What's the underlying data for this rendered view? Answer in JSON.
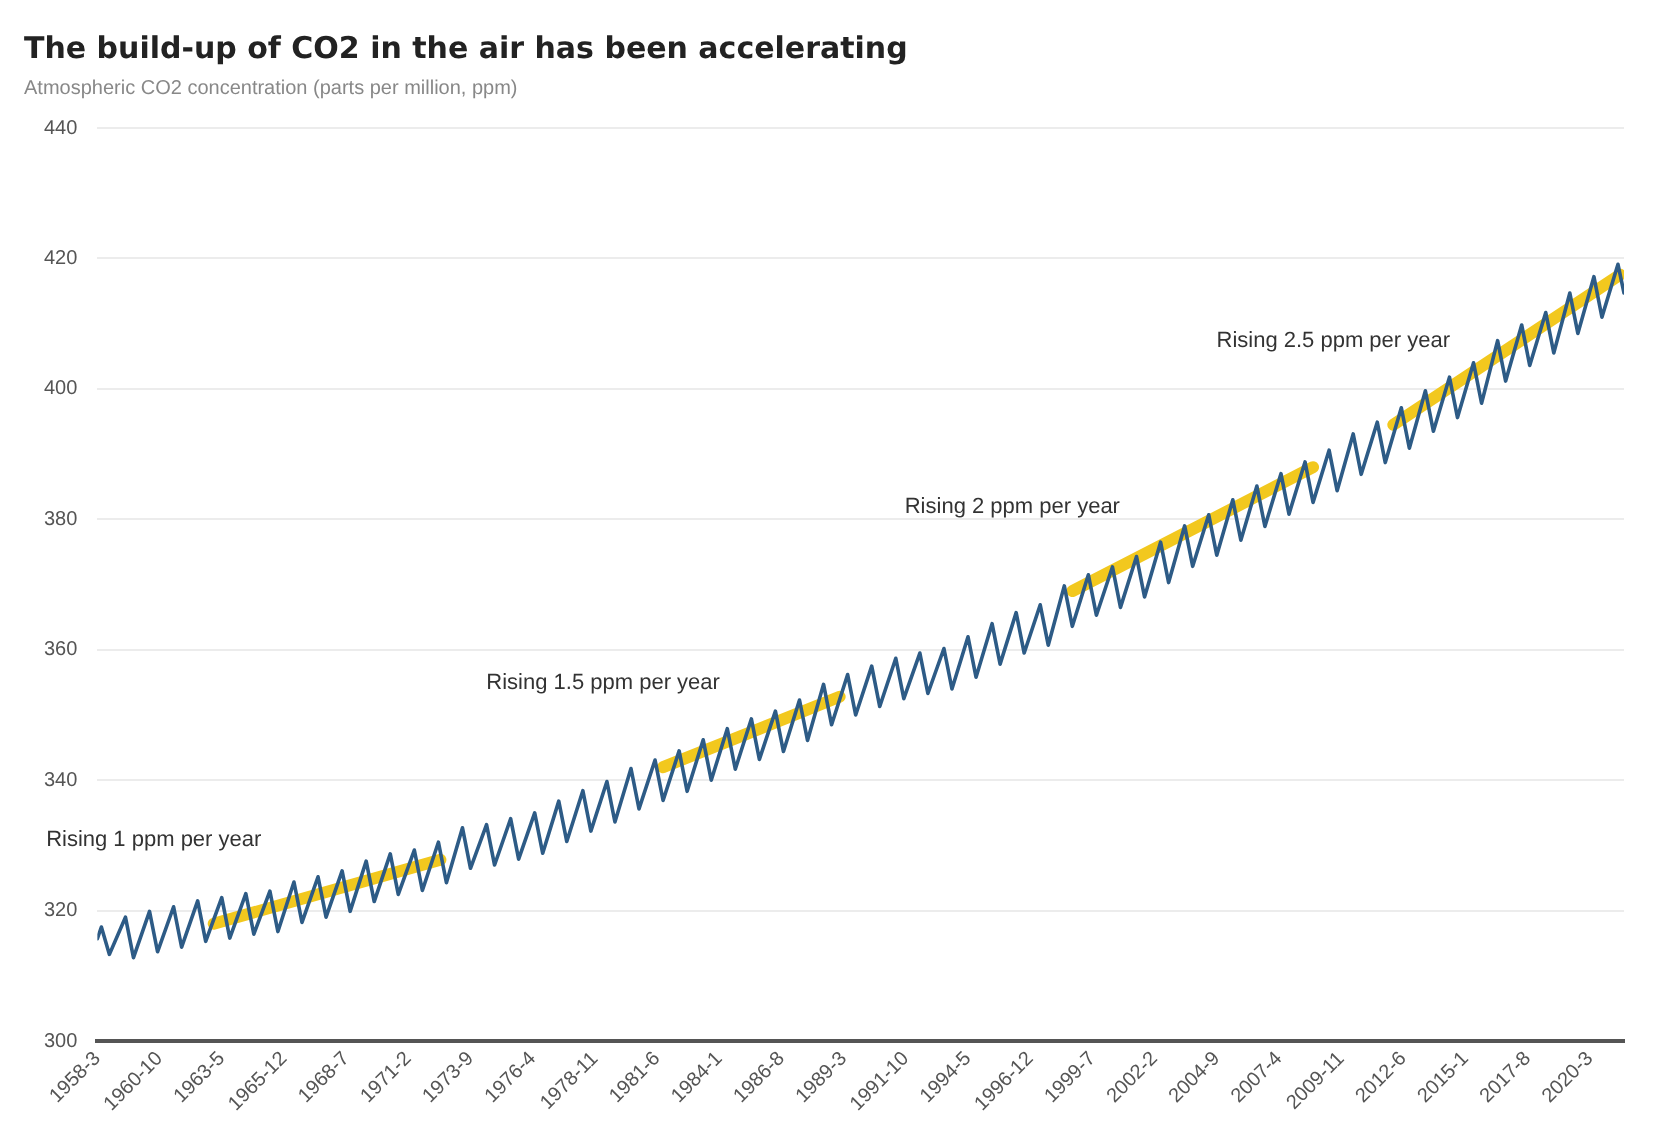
{
  "chart_data": {
    "type": "line",
    "title": "The build-up of CO2 in the air has been accelerating",
    "subtitle": "Atmospheric CO2 concentration (parts per million, ppm)",
    "series": [
      {
        "color": "#2d5b86",
        "x": [
          "1958-03",
          "1958-05",
          "1958-09",
          "1959-05",
          "1959-09",
          "1960-05",
          "1960-09",
          "1961-05",
          "1961-09",
          "1962-05",
          "1962-09",
          "1963-05",
          "1963-09",
          "1964-05",
          "1964-09",
          "1965-05",
          "1965-09",
          "1966-05",
          "1966-09",
          "1967-05",
          "1967-09",
          "1968-05",
          "1968-09",
          "1969-05",
          "1969-09",
          "1970-05",
          "1970-09",
          "1971-05",
          "1971-09",
          "1972-05",
          "1972-09",
          "1973-05",
          "1973-09",
          "1974-05",
          "1974-09",
          "1975-05",
          "1975-09",
          "1976-05",
          "1976-09",
          "1977-05",
          "1977-09",
          "1978-05",
          "1978-09",
          "1979-05",
          "1979-09",
          "1980-05",
          "1980-09",
          "1981-05",
          "1981-09",
          "1982-05",
          "1982-09",
          "1983-05",
          "1983-09",
          "1984-05",
          "1984-09",
          "1985-05",
          "1985-09",
          "1986-05",
          "1986-09",
          "1987-05",
          "1987-09",
          "1988-05",
          "1988-09",
          "1989-05",
          "1989-09",
          "1990-05",
          "1990-09",
          "1991-05",
          "1991-09",
          "1992-05",
          "1992-09",
          "1993-05",
          "1993-09",
          "1994-05",
          "1994-09",
          "1995-05",
          "1995-09",
          "1996-05",
          "1996-09",
          "1997-05",
          "1997-09",
          "1998-05",
          "1998-09",
          "1999-05",
          "1999-09",
          "2000-05",
          "2000-09",
          "2001-05",
          "2001-09",
          "2002-05",
          "2002-09",
          "2003-05",
          "2003-09",
          "2004-05",
          "2004-09",
          "2005-05",
          "2005-09",
          "2006-05",
          "2006-09",
          "2007-05",
          "2007-09",
          "2008-05",
          "2008-09",
          "2009-05",
          "2009-09",
          "2010-05",
          "2010-09",
          "2011-05",
          "2011-09",
          "2012-05",
          "2012-09",
          "2013-05",
          "2013-09",
          "2014-05",
          "2014-09",
          "2015-05",
          "2015-09",
          "2016-05",
          "2016-09",
          "2017-05",
          "2017-09",
          "2018-05",
          "2018-09",
          "2019-05",
          "2019-09",
          "2020-05",
          "2020-09",
          "2021-05",
          "2021-08"
        ],
        "values": [
          315.7,
          317.5,
          313.3,
          319.0,
          312.8,
          319.9,
          313.7,
          320.6,
          314.4,
          321.5,
          315.3,
          322.0,
          315.8,
          322.6,
          316.4,
          323.0,
          316.8,
          324.4,
          318.2,
          325.2,
          319.0,
          326.1,
          319.9,
          327.6,
          321.4,
          328.7,
          322.5,
          329.3,
          323.1,
          330.5,
          324.3,
          332.7,
          326.5,
          333.2,
          327.0,
          334.1,
          327.9,
          335.0,
          328.8,
          336.8,
          330.6,
          338.4,
          332.2,
          339.8,
          333.6,
          341.8,
          335.6,
          343.1,
          336.9,
          344.5,
          338.3,
          346.2,
          340.0,
          347.9,
          341.7,
          349.4,
          343.2,
          350.6,
          344.4,
          352.3,
          346.1,
          354.7,
          348.5,
          356.2,
          350.0,
          357.5,
          351.3,
          358.7,
          352.5,
          359.5,
          353.3,
          360.2,
          354.0,
          362.0,
          355.8,
          364.0,
          357.8,
          365.7,
          359.5,
          366.9,
          360.7,
          369.8,
          363.6,
          371.5,
          365.3,
          372.7,
          366.5,
          374.3,
          368.1,
          376.5,
          370.3,
          379.0,
          372.8,
          380.7,
          374.5,
          383.0,
          376.8,
          385.1,
          378.9,
          387.0,
          380.8,
          388.8,
          382.6,
          390.6,
          384.4,
          393.1,
          386.9,
          394.9,
          388.7,
          397.1,
          390.9,
          399.7,
          393.5,
          401.8,
          395.6,
          404.0,
          397.8,
          407.4,
          401.2,
          409.8,
          403.6,
          411.7,
          405.5,
          414.7,
          408.5,
          417.2,
          411.0,
          419.1,
          414.7
        ]
      },
      {
        "type": "line",
        "color": "#f2c81e",
        "x": [
          "1963-01",
          "1972-06"
        ],
        "values": [
          318.0,
          327.8
        ]
      },
      {
        "type": "line",
        "color": "#f2c81e",
        "x": [
          "1981-09",
          "1989-01"
        ],
        "values": [
          342.0,
          352.8
        ]
      },
      {
        "type": "line",
        "color": "#f2c81e",
        "x": [
          "1998-09",
          "2008-09"
        ],
        "values": [
          369.0,
          388.0
        ]
      },
      {
        "type": "line",
        "color": "#f2c81e",
        "x": [
          "2012-01",
          "2021-06"
        ],
        "values": [
          394.5,
          417.5
        ]
      }
    ],
    "xlim": [
      "1958-03",
      "2021-08"
    ],
    "xticks": [
      {
        "value": "1958-03",
        "label": "1958-3"
      },
      {
        "value": "1960-10",
        "label": "1960-10"
      },
      {
        "value": "1963-05",
        "label": "1963-5"
      },
      {
        "value": "1965-12",
        "label": "1965-12"
      },
      {
        "value": "1968-07",
        "label": "1968-7"
      },
      {
        "value": "1971-02",
        "label": "1971-2"
      },
      {
        "value": "1973-09",
        "label": "1973-9"
      },
      {
        "value": "1976-04",
        "label": "1976-4"
      },
      {
        "value": "1978-11",
        "label": "1978-11"
      },
      {
        "value": "1981-06",
        "label": "1981-6"
      },
      {
        "value": "1984-01",
        "label": "1984-1"
      },
      {
        "value": "1986-08",
        "label": "1986-8"
      },
      {
        "value": "1989-03",
        "label": "1989-3"
      },
      {
        "value": "1991-10",
        "label": "1991-10"
      },
      {
        "value": "1994-05",
        "label": "1994-5"
      },
      {
        "value": "1996-12",
        "label": "1996-12"
      },
      {
        "value": "1999-07",
        "label": "1999-7"
      },
      {
        "value": "2002-02",
        "label": "2002-2"
      },
      {
        "value": "2004-09",
        "label": "2004-9"
      },
      {
        "value": "2007-04",
        "label": "2007-4"
      },
      {
        "value": "2009-11",
        "label": "2009-11"
      },
      {
        "value": "2012-06",
        "label": "2012-6"
      },
      {
        "value": "2015-01",
        "label": "2015-1"
      },
      {
        "value": "2017-08",
        "label": "2017-8"
      },
      {
        "value": "2020-03",
        "label": "2020-3"
      }
    ],
    "ylim": [
      300,
      440
    ],
    "yticks": [
      300,
      320,
      340,
      360,
      380,
      400,
      420,
      440
    ],
    "grid": "y",
    "marker": "none",
    "line_style": "solid",
    "annotations": [
      "Rising 1 ppm per year",
      "Rising 1.5 ppm per year",
      "Rising 2 ppm per year",
      "Rising 2.5 ppm per year"
    ]
  }
}
